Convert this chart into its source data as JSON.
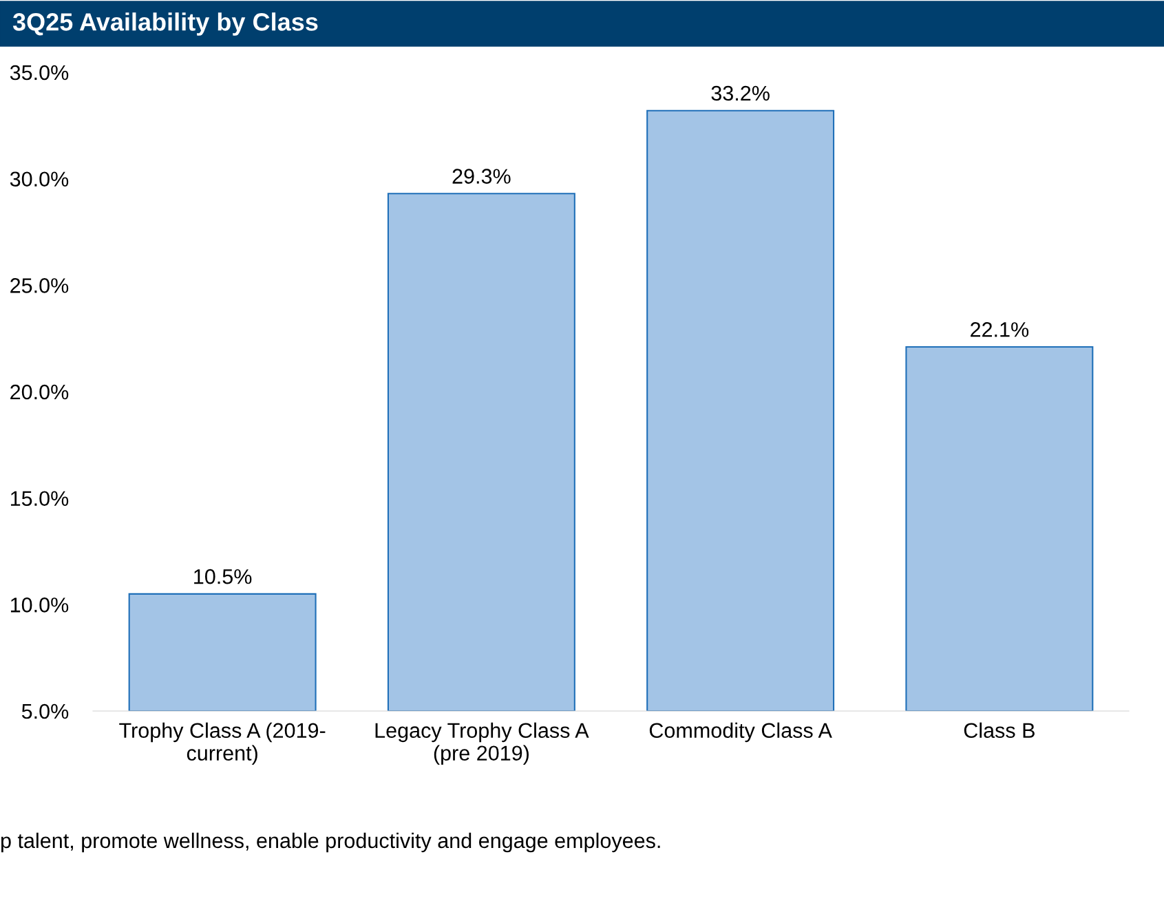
{
  "chart_data": {
    "type": "bar",
    "title": "3Q25 Availability by Class",
    "categories": [
      "Trophy Class A (2019-\ncurrent)",
      "Legacy Trophy Class A\n(pre 2019)",
      "Commodity Class A",
      "Class B"
    ],
    "values": [
      10.5,
      29.3,
      33.2,
      22.1
    ],
    "color": "#a3c4e6",
    "value_labels": [
      "10.5%",
      "29.3%",
      "33.2%",
      "22.1%"
    ],
    "ylim": [
      5,
      35
    ],
    "yticks": [
      {
        "value": 5,
        "label": "5.0%"
      },
      {
        "value": 10,
        "label": "10.0%"
      },
      {
        "value": 15,
        "label": "15.0%"
      },
      {
        "value": 20,
        "label": "20.0%"
      },
      {
        "value": 25,
        "label": "25.0%"
      },
      {
        "value": 30,
        "label": "30.0%"
      },
      {
        "value": 35,
        "label": "35.0%"
      }
    ],
    "grid": false,
    "legend": false,
    "annotations": [
      "p talent, promote wellness, enable productivity and engage employees."
    ]
  }
}
